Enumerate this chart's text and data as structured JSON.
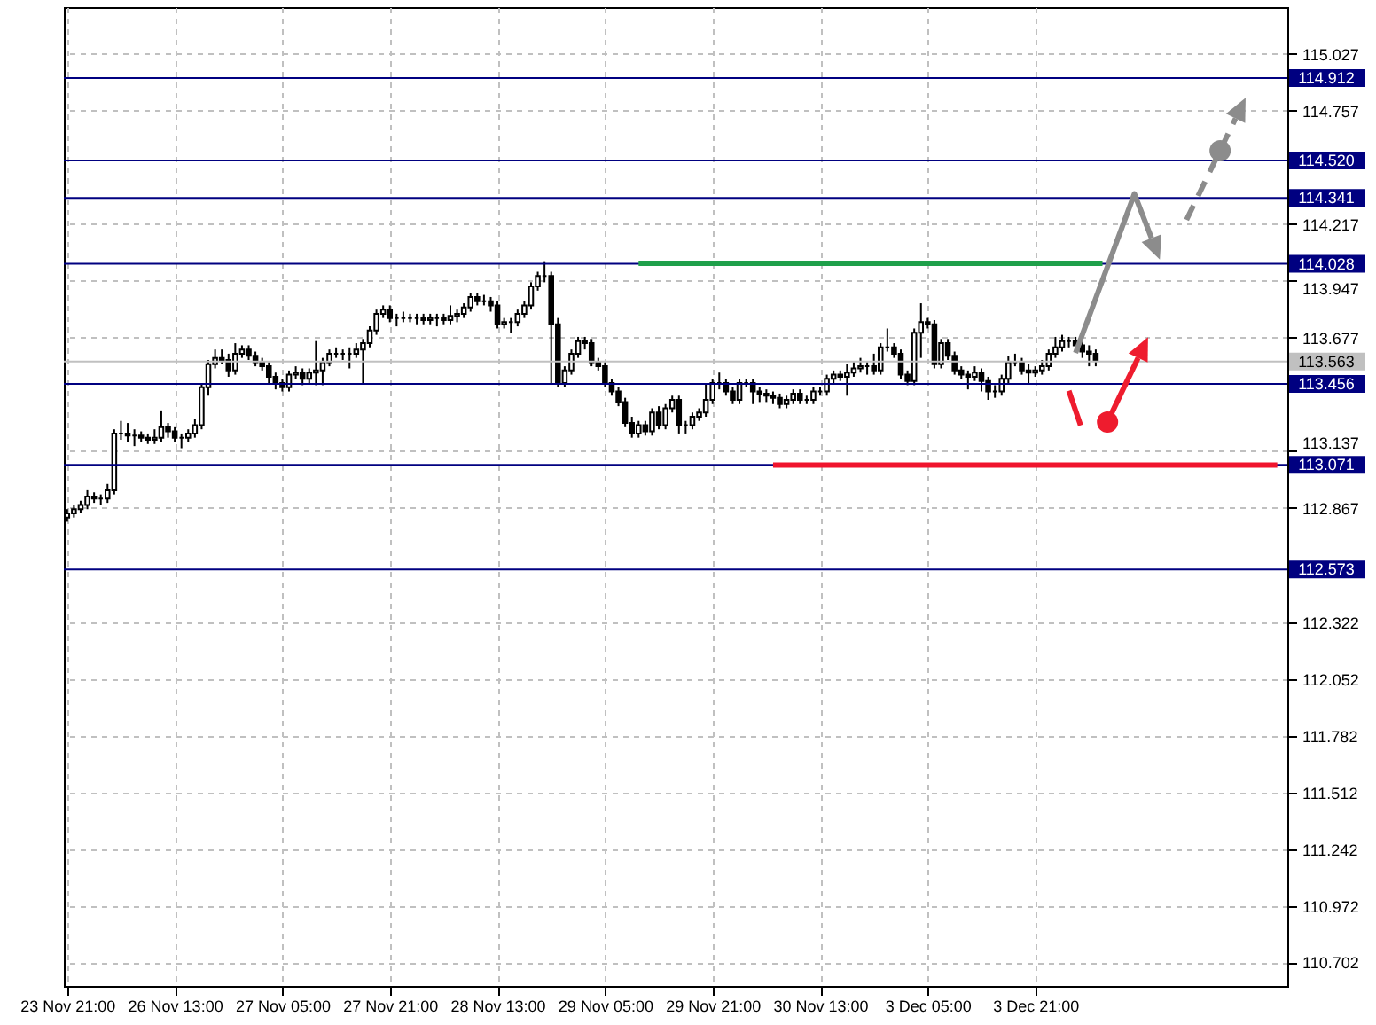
{
  "chart_data": {
    "type": "candlestick",
    "categories": [
      "23 Nov 21:00",
      null,
      null,
      null,
      null,
      null,
      null,
      null,
      null,
      null,
      null,
      null,
      null,
      null,
      null,
      null,
      "26 Nov 13:00",
      null,
      null,
      null,
      null,
      null,
      null,
      null,
      null,
      null,
      null,
      null,
      null,
      null,
      null,
      null,
      "27 Nov 05:00",
      null,
      null,
      null,
      null,
      null,
      null,
      null,
      null,
      null,
      null,
      null,
      null,
      null,
      null,
      null,
      "27 Nov 21:00",
      null,
      null,
      null,
      null,
      null,
      null,
      null,
      null,
      null,
      null,
      null,
      null,
      null,
      null,
      null,
      "28 Nov 13:00",
      null,
      null,
      null,
      null,
      null,
      null,
      null,
      null,
      null,
      null,
      null,
      null,
      null,
      null,
      null,
      "29 Nov 05:00",
      null,
      null,
      null,
      null,
      null,
      null,
      null,
      null,
      null,
      null,
      null,
      null,
      null,
      null,
      null,
      "29 Nov 21:00",
      null,
      null,
      null,
      null,
      null,
      null,
      null,
      null,
      null,
      null,
      null,
      null,
      null,
      null,
      null,
      "30 Nov 13:00",
      null,
      null,
      null,
      null,
      null,
      null,
      null,
      null,
      null,
      null,
      null,
      null,
      null,
      null,
      null,
      "3 Dec 05:00",
      null,
      null,
      null,
      null,
      null,
      null,
      null,
      null,
      null,
      null,
      null,
      null,
      null,
      null,
      null,
      "3 Dec 21:00",
      null,
      null,
      null,
      null,
      null,
      null,
      null,
      null,
      null,
      null,
      null,
      null,
      null,
      null,
      null,
      null,
      null,
      null,
      null,
      null,
      null,
      null,
      null,
      null,
      null,
      null,
      null,
      null,
      null,
      null,
      null,
      null,
      null,
      null,
      null,
      null,
      null
    ],
    "ohlc": [
      [
        112.82,
        112.86,
        112.8,
        112.84
      ],
      [
        112.84,
        112.88,
        112.82,
        112.86
      ],
      [
        112.86,
        112.9,
        112.84,
        112.88
      ],
      [
        112.88,
        112.95,
        112.86,
        112.92
      ],
      [
        112.92,
        112.94,
        112.89,
        112.91
      ],
      [
        112.91,
        112.93,
        112.88,
        112.91
      ],
      [
        112.91,
        112.98,
        112.89,
        112.95
      ],
      [
        112.95,
        113.24,
        112.93,
        113.22
      ],
      [
        113.22,
        113.28,
        113.19,
        113.22
      ],
      [
        113.22,
        113.27,
        113.18,
        113.21
      ],
      [
        113.21,
        113.24,
        113.16,
        113.21
      ],
      [
        113.21,
        113.23,
        113.18,
        113.2
      ],
      [
        113.2,
        113.22,
        113.17,
        113.19
      ],
      [
        113.19,
        113.24,
        113.17,
        113.2
      ],
      [
        113.2,
        113.33,
        113.18,
        113.25
      ],
      [
        113.25,
        113.27,
        113.2,
        113.23
      ],
      [
        113.23,
        113.25,
        113.18,
        113.2
      ],
      [
        113.2,
        113.22,
        113.15,
        113.2
      ],
      [
        113.2,
        113.24,
        113.18,
        113.22
      ],
      [
        113.22,
        113.29,
        113.2,
        113.26
      ],
      [
        113.26,
        113.46,
        113.24,
        113.44
      ],
      [
        113.44,
        113.57,
        113.4,
        113.55
      ],
      [
        113.55,
        113.62,
        113.53,
        113.58
      ],
      [
        113.58,
        113.62,
        113.55,
        113.57
      ],
      [
        113.57,
        113.6,
        113.49,
        113.52
      ],
      [
        113.52,
        113.65,
        113.5,
        113.6
      ],
      [
        113.6,
        113.64,
        113.58,
        113.62
      ],
      [
        113.62,
        113.64,
        113.57,
        113.59
      ],
      [
        113.59,
        113.61,
        113.54,
        113.56
      ],
      [
        113.56,
        113.58,
        113.52,
        113.54
      ],
      [
        113.54,
        113.56,
        113.46,
        113.49
      ],
      [
        113.49,
        113.51,
        113.43,
        113.46
      ],
      [
        113.46,
        113.48,
        113.42,
        113.44
      ],
      [
        113.44,
        113.52,
        113.42,
        113.5
      ],
      [
        113.5,
        113.54,
        113.48,
        113.51
      ],
      [
        113.51,
        113.53,
        113.45,
        113.48
      ],
      [
        113.48,
        113.53,
        113.46,
        113.51
      ],
      [
        113.51,
        113.66,
        113.45,
        113.52
      ],
      [
        113.52,
        113.58,
        113.45,
        113.56
      ],
      [
        113.56,
        113.62,
        113.54,
        113.6
      ],
      [
        113.6,
        113.63,
        113.58,
        113.6
      ],
      [
        113.6,
        113.62,
        113.57,
        113.6
      ],
      [
        113.6,
        113.63,
        113.53,
        113.6
      ],
      [
        113.6,
        113.65,
        113.58,
        113.62
      ],
      [
        113.62,
        113.67,
        113.46,
        113.65
      ],
      [
        113.65,
        113.73,
        113.63,
        113.71
      ],
      [
        113.71,
        113.81,
        113.69,
        113.79
      ],
      [
        113.79,
        113.83,
        113.77,
        113.81
      ],
      [
        113.81,
        113.83,
        113.75,
        113.77
      ],
      [
        113.77,
        113.79,
        113.73,
        113.77
      ],
      [
        113.77,
        113.8,
        113.75,
        113.77
      ],
      [
        113.77,
        113.79,
        113.75,
        113.77
      ],
      [
        113.77,
        113.79,
        113.74,
        113.77
      ],
      [
        113.77,
        113.79,
        113.74,
        113.76
      ],
      [
        113.76,
        113.79,
        113.74,
        113.77
      ],
      [
        113.77,
        113.79,
        113.73,
        113.77
      ],
      [
        113.77,
        113.79,
        113.74,
        113.76
      ],
      [
        113.76,
        113.83,
        113.74,
        113.78
      ],
      [
        113.78,
        113.81,
        113.75,
        113.79
      ],
      [
        113.79,
        113.84,
        113.77,
        113.82
      ],
      [
        113.82,
        113.89,
        113.8,
        113.87
      ],
      [
        113.87,
        113.89,
        113.83,
        113.85
      ],
      [
        113.85,
        113.88,
        113.83,
        113.85
      ],
      [
        113.85,
        113.87,
        113.8,
        113.83
      ],
      [
        113.83,
        113.85,
        113.72,
        113.74
      ],
      [
        113.74,
        113.77,
        113.72,
        113.75
      ],
      [
        113.75,
        113.77,
        113.7,
        113.75
      ],
      [
        113.75,
        113.81,
        113.73,
        113.79
      ],
      [
        113.79,
        113.85,
        113.77,
        113.83
      ],
      [
        113.83,
        113.94,
        113.81,
        113.92
      ],
      [
        113.92,
        113.99,
        113.9,
        113.97
      ],
      [
        113.97,
        114.04,
        113.94,
        113.97
      ],
      [
        113.97,
        113.99,
        113.46,
        113.74
      ],
      [
        113.74,
        113.77,
        113.44,
        113.46
      ],
      [
        113.46,
        113.54,
        113.44,
        113.52
      ],
      [
        113.52,
        113.62,
        113.5,
        113.6
      ],
      [
        113.6,
        113.68,
        113.58,
        113.66
      ],
      [
        113.66,
        113.68,
        113.62,
        113.65
      ],
      [
        113.65,
        113.67,
        113.54,
        113.56
      ],
      [
        113.56,
        113.58,
        113.52,
        113.54
      ],
      [
        113.54,
        113.56,
        113.44,
        113.46
      ],
      [
        113.46,
        113.48,
        113.4,
        113.42
      ],
      [
        113.42,
        113.44,
        113.35,
        113.37
      ],
      [
        113.37,
        113.39,
        113.25,
        113.27
      ],
      [
        113.27,
        113.3,
        113.2,
        113.22
      ],
      [
        113.22,
        113.28,
        113.2,
        113.26
      ],
      [
        113.26,
        113.28,
        113.21,
        113.23
      ],
      [
        113.23,
        113.34,
        113.21,
        113.32
      ],
      [
        113.32,
        113.35,
        113.24,
        113.26
      ],
      [
        113.26,
        113.36,
        113.24,
        113.34
      ],
      [
        113.34,
        113.4,
        113.32,
        113.38
      ],
      [
        113.38,
        113.4,
        113.22,
        113.26
      ],
      [
        113.26,
        113.28,
        113.22,
        113.26
      ],
      [
        113.26,
        113.32,
        113.24,
        113.3
      ],
      [
        113.3,
        113.34,
        113.28,
        113.32
      ],
      [
        113.32,
        113.46,
        113.3,
        113.38
      ],
      [
        113.38,
        113.48,
        113.36,
        113.46
      ],
      [
        113.46,
        113.51,
        113.43,
        113.46
      ],
      [
        113.46,
        113.48,
        113.4,
        113.42
      ],
      [
        113.42,
        113.44,
        113.36,
        113.38
      ],
      [
        113.38,
        113.48,
        113.36,
        113.46
      ],
      [
        113.46,
        113.48,
        113.44,
        113.46
      ],
      [
        113.46,
        113.48,
        113.36,
        113.42
      ],
      [
        113.42,
        113.44,
        113.37,
        113.41
      ],
      [
        113.41,
        113.43,
        113.37,
        113.4
      ],
      [
        113.4,
        113.42,
        113.36,
        113.39
      ],
      [
        113.39,
        113.41,
        113.34,
        113.36
      ],
      [
        113.36,
        113.4,
        113.34,
        113.38
      ],
      [
        113.38,
        113.43,
        113.36,
        113.41
      ],
      [
        113.41,
        113.43,
        113.36,
        113.38
      ],
      [
        113.38,
        113.4,
        113.36,
        113.38
      ],
      [
        113.38,
        113.44,
        113.36,
        113.42
      ],
      [
        113.42,
        113.44,
        113.4,
        113.42
      ],
      [
        113.42,
        113.5,
        113.4,
        113.48
      ],
      [
        113.48,
        113.52,
        113.46,
        113.5
      ],
      [
        113.5,
        113.52,
        113.47,
        113.49
      ],
      [
        113.49,
        113.55,
        113.4,
        113.51
      ],
      [
        113.51,
        113.56,
        113.49,
        113.53
      ],
      [
        113.53,
        113.58,
        113.51,
        113.54
      ],
      [
        113.54,
        113.56,
        113.5,
        113.54
      ],
      [
        113.54,
        113.6,
        113.5,
        113.52
      ],
      [
        113.52,
        113.65,
        113.5,
        113.63
      ],
      [
        113.63,
        113.72,
        113.61,
        113.63
      ],
      [
        113.63,
        113.65,
        113.58,
        113.6
      ],
      [
        113.6,
        113.62,
        113.48,
        113.5
      ],
      [
        113.5,
        113.52,
        113.45,
        113.47
      ],
      [
        113.47,
        113.72,
        113.45,
        113.7
      ],
      [
        113.7,
        113.84,
        113.58,
        113.75
      ],
      [
        113.75,
        113.77,
        113.72,
        113.74
      ],
      [
        113.74,
        113.76,
        113.53,
        113.55
      ],
      [
        113.55,
        113.67,
        113.53,
        113.65
      ],
      [
        113.65,
        113.67,
        113.57,
        113.59
      ],
      [
        113.59,
        113.61,
        113.5,
        113.52
      ],
      [
        113.52,
        113.54,
        113.48,
        113.5
      ],
      [
        113.5,
        113.52,
        113.43,
        113.49
      ],
      [
        113.49,
        113.54,
        113.47,
        113.51
      ],
      [
        113.51,
        113.53,
        113.42,
        113.47
      ],
      [
        113.47,
        113.49,
        113.38,
        113.42
      ],
      [
        113.42,
        113.45,
        113.39,
        113.42
      ],
      [
        113.42,
        113.5,
        113.4,
        113.48
      ],
      [
        113.48,
        113.59,
        113.46,
        113.56
      ],
      [
        113.56,
        113.6,
        113.54,
        113.56
      ],
      [
        113.56,
        113.58,
        113.5,
        113.52
      ],
      [
        113.52,
        113.55,
        113.46,
        113.51
      ],
      [
        113.51,
        113.54,
        113.49,
        113.52
      ],
      [
        113.52,
        113.57,
        113.5,
        113.54
      ],
      [
        113.54,
        113.62,
        113.52,
        113.6
      ],
      [
        113.6,
        113.68,
        113.58,
        113.63
      ],
      [
        113.63,
        113.69,
        113.61,
        113.66
      ],
      [
        113.66,
        113.68,
        113.63,
        113.66
      ],
      [
        113.66,
        113.68,
        113.62,
        113.64
      ],
      [
        113.64,
        113.66,
        113.58,
        113.61
      ],
      [
        113.61,
        113.64,
        113.54,
        113.6
      ],
      [
        113.6,
        113.62,
        113.54,
        113.57
      ],
      null,
      null,
      null,
      null,
      null,
      null,
      null,
      null,
      null,
      null,
      null,
      null,
      null,
      null,
      null,
      null,
      null,
      null,
      null,
      null,
      null,
      null,
      null,
      null,
      null,
      null,
      null,
      null
    ],
    "series": [
      {
        "type": "line",
        "color": "#1fa04a",
        "values": [
          null,
          null,
          null,
          null,
          null,
          null,
          null,
          null,
          null,
          null,
          null,
          null,
          null,
          null,
          null,
          null,
          null,
          null,
          null,
          null,
          null,
          null,
          null,
          null,
          null,
          null,
          null,
          null,
          null,
          null,
          null,
          null,
          null,
          null,
          null,
          null,
          null,
          null,
          null,
          null,
          null,
          null,
          null,
          null,
          null,
          null,
          null,
          null,
          null,
          null,
          null,
          null,
          null,
          null,
          null,
          null,
          null,
          null,
          null,
          null,
          null,
          null,
          null,
          null,
          null,
          null,
          null,
          null,
          null,
          null,
          null,
          null,
          null,
          null,
          null,
          null,
          null,
          null,
          null,
          null,
          null,
          null,
          null,
          null,
          null,
          114.03,
          114.03,
          114.03,
          114.03,
          114.03,
          114.03,
          114.03,
          114.03,
          114.03,
          114.03,
          114.03,
          114.03,
          114.03,
          114.03,
          114.03,
          114.03,
          114.03,
          114.03,
          114.03,
          114.03,
          114.03,
          114.03,
          114.03,
          114.03,
          114.03,
          114.03,
          114.03,
          114.03,
          114.03,
          114.03,
          114.03,
          114.03,
          114.03,
          114.03,
          114.03,
          114.03,
          114.03,
          114.03,
          114.03,
          114.03,
          114.03,
          114.03,
          114.03,
          114.03,
          114.03,
          114.03,
          114.03,
          114.03,
          114.03,
          114.03,
          114.03,
          114.03,
          114.03,
          114.03,
          114.03,
          114.03,
          114.03,
          114.03,
          114.03,
          114.03,
          114.03,
          114.03,
          114.03,
          114.03,
          114.03,
          114.03,
          114.03,
          114.03,
          114.03,
          114.03,
          null,
          null,
          null,
          null,
          null,
          null,
          null,
          null,
          null,
          null,
          null,
          null,
          null,
          null,
          null,
          null,
          null,
          null,
          null,
          null,
          null,
          null,
          null,
          null,
          null,
          null,
          null
        ]
      },
      {
        "type": "line",
        "color": "#f0142d",
        "values": [
          null,
          null,
          null,
          null,
          null,
          null,
          null,
          null,
          null,
          null,
          null,
          null,
          null,
          null,
          null,
          null,
          null,
          null,
          null,
          null,
          null,
          null,
          null,
          null,
          null,
          null,
          null,
          null,
          null,
          null,
          null,
          null,
          null,
          null,
          null,
          null,
          null,
          null,
          null,
          null,
          null,
          null,
          null,
          null,
          null,
          null,
          null,
          null,
          null,
          null,
          null,
          null,
          null,
          null,
          null,
          null,
          null,
          null,
          null,
          null,
          null,
          null,
          null,
          null,
          null,
          null,
          null,
          null,
          null,
          null,
          null,
          null,
          null,
          null,
          null,
          null,
          null,
          null,
          null,
          null,
          null,
          null,
          null,
          null,
          null,
          null,
          null,
          null,
          null,
          null,
          null,
          null,
          null,
          null,
          null,
          null,
          null,
          null,
          null,
          null,
          null,
          null,
          null,
          null,
          null,
          113.07,
          113.07,
          113.07,
          113.07,
          113.07,
          113.07,
          113.07,
          113.07,
          113.07,
          113.07,
          113.07,
          113.07,
          113.07,
          113.07,
          113.07,
          113.07,
          113.07,
          113.07,
          113.07,
          113.07,
          113.07,
          113.07,
          113.07,
          113.07,
          113.07,
          113.07,
          113.07,
          113.07,
          113.07,
          113.07,
          113.07,
          113.07,
          113.07,
          113.07,
          113.07,
          113.07,
          113.07,
          113.07,
          113.07,
          113.07,
          113.07,
          113.07,
          113.07,
          113.07,
          113.07,
          113.07,
          113.07,
          113.07,
          113.07,
          113.07,
          113.07,
          113.07,
          113.07,
          113.07,
          113.07,
          113.07,
          113.07,
          113.07,
          113.07,
          113.07,
          113.07,
          113.07,
          113.07,
          113.07,
          113.07,
          113.07,
          113.07,
          113.07,
          113.07,
          113.07,
          113.07,
          113.07,
          113.07,
          113.07,
          113.07,
          113.07,
          null
        ]
      }
    ],
    "ylim": [
      110.59,
      115.25
    ],
    "yticks": [
      115.027,
      114.757,
      114.217,
      113.947,
      113.677,
      113.137,
      112.867,
      112.322,
      112.052,
      111.782,
      111.512,
      111.242,
      110.972,
      110.702
    ],
    "ref_lines": [
      {
        "axis": "y",
        "value": 114.912,
        "label": "114.912",
        "color": "#000080"
      },
      {
        "axis": "y",
        "value": 114.52,
        "label": "114.520",
        "color": "#000080"
      },
      {
        "axis": "y",
        "value": 114.341,
        "label": "114.341",
        "color": "#000080"
      },
      {
        "axis": "y",
        "value": 114.028,
        "label": "114.028",
        "color": "#000080"
      },
      {
        "axis": "y",
        "value": 113.563,
        "label": "113.563",
        "color": "#c0c0c0"
      },
      {
        "axis": "y",
        "value": 113.456,
        "label": "113.456",
        "color": "#000080"
      },
      {
        "axis": "y",
        "value": 113.071,
        "label": "113.071",
        "color": "#000080"
      },
      {
        "axis": "y",
        "value": 112.573,
        "label": "112.573",
        "color": "#000080"
      }
    ],
    "grid": true
  }
}
